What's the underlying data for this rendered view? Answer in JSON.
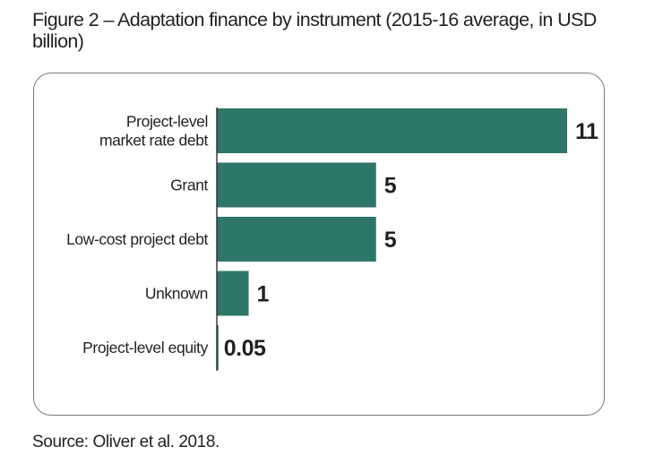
{
  "title": "Figure 2 – Adaptation finance by instrument (2015-16 average, in USD billion)",
  "source": "Source: Oliver et al. 2018.",
  "colors": {
    "bar": "#2e7668",
    "axis": "#231f20",
    "frame": "#7a7a7a"
  },
  "chart_data": {
    "type": "bar",
    "orientation": "horizontal",
    "title": "Figure 2 – Adaptation finance by instrument (2015-16 average, in USD billion)",
    "categories": [
      [
        "Project-level",
        "market rate debt"
      ],
      [
        "Grant"
      ],
      [
        "Low-cost project debt"
      ],
      [
        "Unknown"
      ],
      [
        "Project-level equity"
      ]
    ],
    "values": [
      11,
      5,
      5,
      1,
      0.05
    ],
    "value_labels": [
      "11",
      "5",
      "5",
      "1",
      "0.05"
    ],
    "xlim": [
      0,
      11
    ],
    "grid": false,
    "legend": "none"
  }
}
